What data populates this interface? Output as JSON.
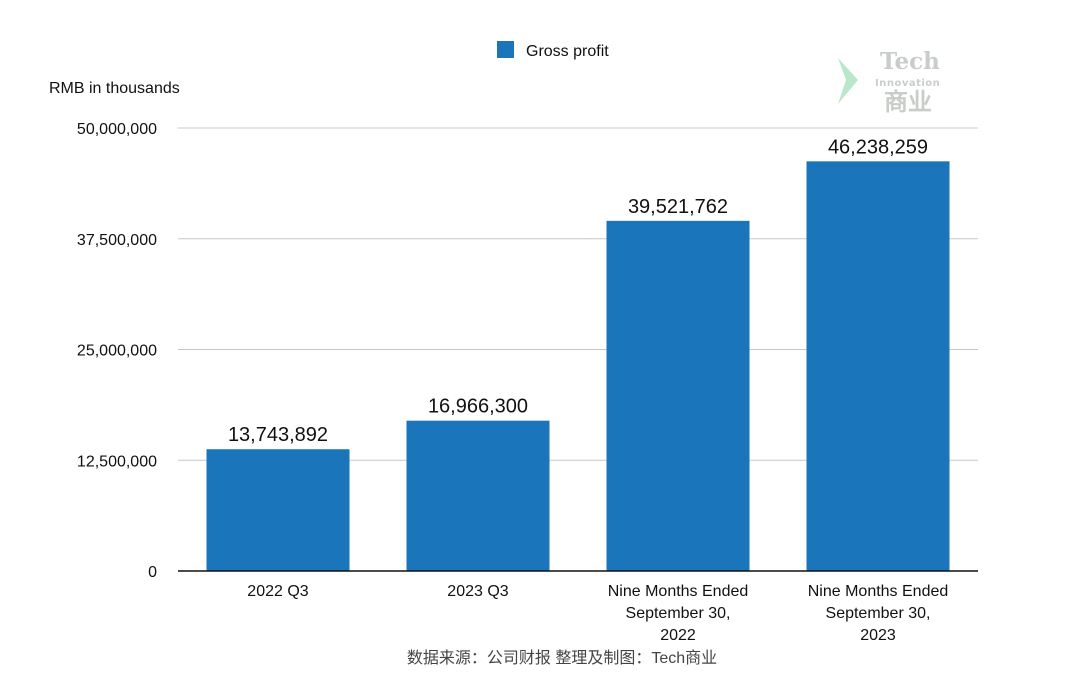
{
  "chart_data": {
    "type": "bar",
    "ylabel": "RMB in thousands",
    "categories": [
      [
        "2022 Q3"
      ],
      [
        "2023 Q3"
      ],
      [
        "Nine Months Ended",
        "September 30,",
        "2022"
      ],
      [
        "Nine Months Ended",
        "September 30,",
        "2023"
      ]
    ],
    "series": [
      {
        "name": "Gross profit",
        "color": "#1a75bb",
        "values": [
          13743892,
          16966300,
          39521762,
          46238259
        ],
        "labels": [
          "13,743,892",
          "16,966,300",
          "39,521,762",
          "46,238,259"
        ]
      }
    ],
    "ylim": [
      0,
      50000000
    ],
    "yticks": [
      {
        "value": 0,
        "label": "0"
      },
      {
        "value": 12500000,
        "label": "12,500,000"
      },
      {
        "value": 25000000,
        "label": "25,000,000"
      },
      {
        "value": 37500000,
        "label": "37,500,000"
      },
      {
        "value": 50000000,
        "label": "50,000,000"
      }
    ],
    "grid": true,
    "legend_position": "top-center"
  },
  "source_note": "数据来源：公司财报 整理及制图：Tech商业",
  "watermark": {
    "line1": "Tech",
    "line2": "Innovation",
    "line3": "商业",
    "color": "#c9cdc9",
    "accent_color": "#b9e8c8"
  }
}
